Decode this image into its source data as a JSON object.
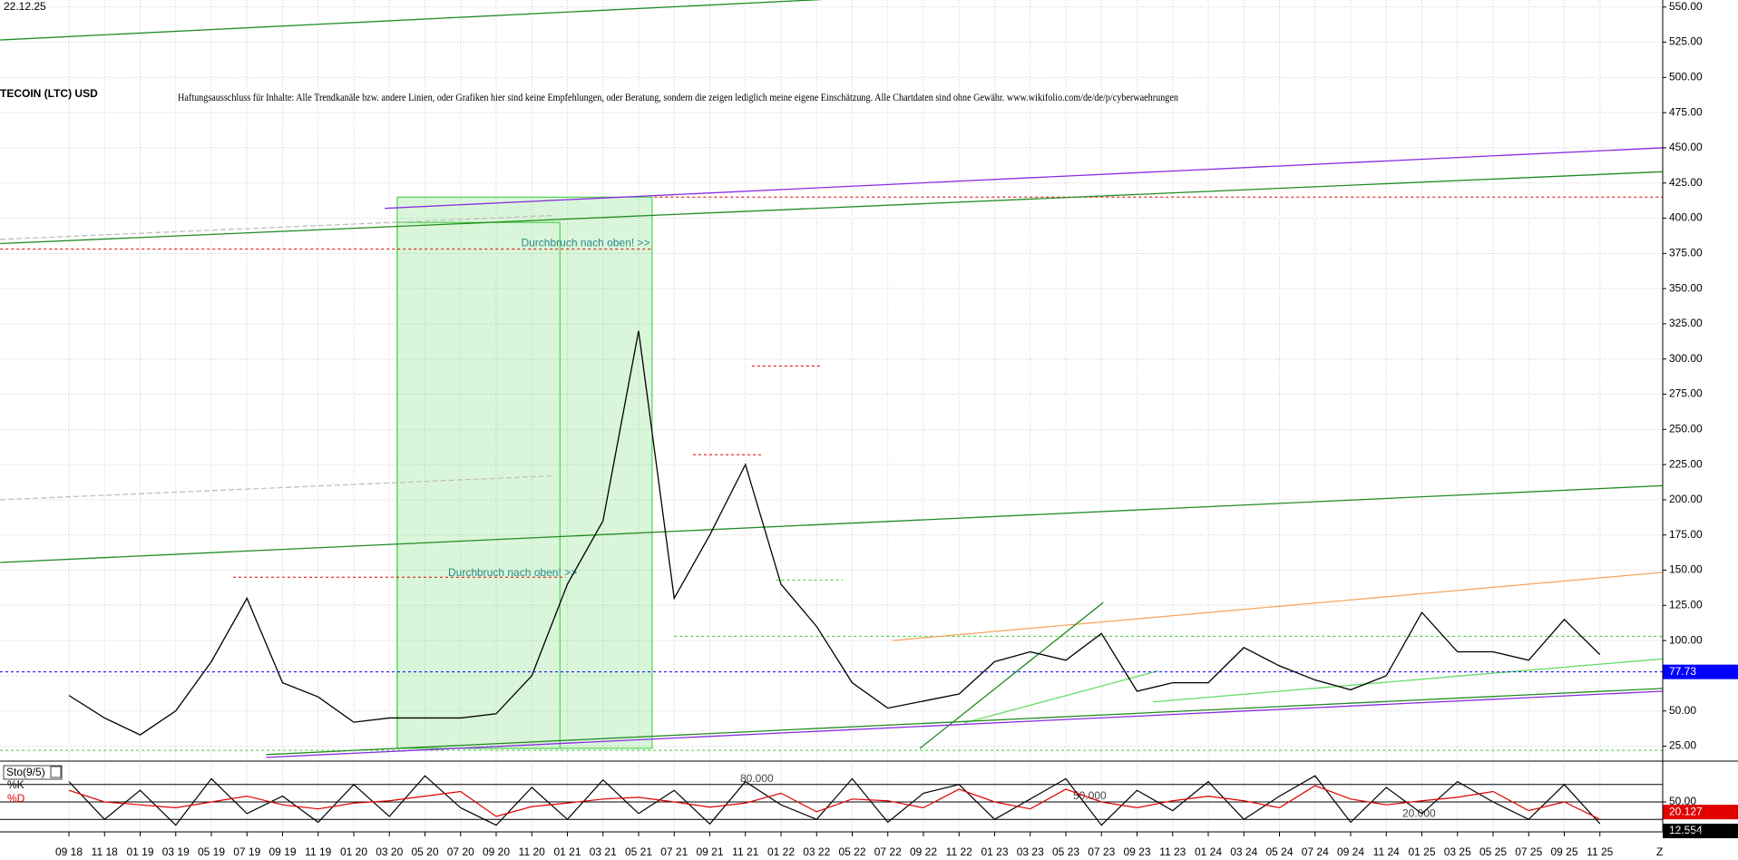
{
  "chart_data": {
    "type": "line",
    "date": "22.12.25",
    "title": "TECOIN (LTC) USD",
    "subtitle": "Haftungsausschluss für Inhalte: Alle Trendkanäle bzw. andere Linien, oder Grafiken hier sind keine Empfehlungen, oder Beratung, sondern die zeigen lediglich meine eigene Einschätzung. Alle Chartdaten sind ohne Gewähr.  www.wikifolio.com/de/de/p/cyberwaehrungen",
    "categories": [
      "09 18",
      "11 18",
      "01 19",
      "03 19",
      "05 19",
      "07 19",
      "09 19",
      "11 19",
      "01 20",
      "03 20",
      "05 20",
      "07 20",
      "09 20",
      "11 20",
      "01 21",
      "03 21",
      "05 21",
      "07 21",
      "09 21",
      "11 21",
      "01 22",
      "03 22",
      "05 22",
      "07 22",
      "09 22",
      "11 22",
      "01 23",
      "03 23",
      "05 23",
      "07 23",
      "09 23",
      "11 23",
      "01 24",
      "03 24",
      "05 24",
      "07 24",
      "09 24",
      "11 24",
      "01 25",
      "03 25",
      "05 25",
      "07 25",
      "09 25",
      "11 25"
    ],
    "values": [
      61,
      45,
      33,
      50,
      85,
      130,
      70,
      60,
      42,
      45,
      45,
      45,
      48,
      75,
      140,
      185,
      320,
      130,
      175,
      225,
      140,
      110,
      70,
      52,
      57,
      62,
      85,
      92,
      86,
      105,
      64,
      70,
      70,
      95,
      82,
      72,
      65,
      75,
      120,
      92,
      92,
      86,
      115,
      90
    ],
    "color": "#000000",
    "last_price": 77.73,
    "last_price_color": "#0000ff",
    "corner_label": "Z",
    "ylim": [
      15,
      555
    ],
    "yticks": [
      {
        "value": 25,
        "label": "25.00"
      },
      {
        "value": 50,
        "label": "50.00"
      },
      {
        "value": 75,
        "label": "75.00"
      },
      {
        "value": 100,
        "label": "100.00"
      },
      {
        "value": 125,
        "label": "125.00"
      },
      {
        "value": 150,
        "label": "150.00"
      },
      {
        "value": 175,
        "label": "175.00"
      },
      {
        "value": 200,
        "label": "200.00"
      },
      {
        "value": 225,
        "label": "225.00"
      },
      {
        "value": 250,
        "label": "250.00"
      },
      {
        "value": 275,
        "label": "275.00"
      },
      {
        "value": 300,
        "label": "300.00"
      },
      {
        "value": 325,
        "label": "325.00"
      },
      {
        "value": 350,
        "label": "350.00"
      },
      {
        "value": 375,
        "label": "375.00"
      },
      {
        "value": 400,
        "label": "400.00"
      },
      {
        "value": 425,
        "label": "425.00"
      },
      {
        "value": 450,
        "label": "450.00"
      },
      {
        "value": 475,
        "label": "475.00"
      },
      {
        "value": 500,
        "label": "500.00"
      },
      {
        "value": 525,
        "label": "525.00"
      },
      {
        "value": 550,
        "label": "550.00"
      }
    ],
    "grid": true,
    "hlines": [
      {
        "value": 415,
        "from": 16.44,
        "to": 44.77,
        "color": "#e00000"
      },
      {
        "value": 378,
        "from": -1.93,
        "to": 16.38,
        "color": "#e00000"
      },
      {
        "value": 145,
        "from": 4.61,
        "to": 13.95,
        "color": "#e00000"
      },
      {
        "value": 295,
        "from": 19.18,
        "to": 21.1,
        "color": "#e00000"
      },
      {
        "value": 232,
        "from": 17.53,
        "to": 19.49,
        "color": "#e00000"
      },
      {
        "value": 143,
        "from": 19.86,
        "to": 21.73,
        "color": "#33cc33"
      },
      {
        "value": 103,
        "from": 17.0,
        "to": 44.77,
        "color": "#33cc33"
      },
      {
        "value": 22,
        "from": -1.93,
        "to": 44.77,
        "color": "#33cc33"
      }
    ],
    "trendlines": [
      {
        "x": [
          -1.93,
          21.67
        ],
        "y": [
          526.6,
          556
        ],
        "color": "#228b22"
      },
      {
        "x": [
          8.87,
          44.77
        ],
        "y": [
          407,
          450
        ],
        "color": "#8a2be2"
      },
      {
        "x": [
          -1.93,
          44.77
        ],
        "y": [
          382,
          433
        ],
        "color": "#228b22"
      },
      {
        "x": [
          -1.93,
          44.77
        ],
        "y": [
          155.5,
          210
        ],
        "color": "#228b22"
      },
      {
        "x": [
          -1.93,
          13.64
        ],
        "y": [
          385,
          402
        ],
        "color": "#c0c0c0"
      },
      {
        "x": [
          -1.93,
          13.64
        ],
        "y": [
          200,
          217
        ],
        "color": "#c0c0c0"
      },
      {
        "x": [
          23.13,
          44.77
        ],
        "y": [
          100,
          148.5
        ],
        "color": "#f4a460"
      },
      {
        "x": [
          23.9,
          29.05
        ],
        "y": [
          23.4,
          127
        ],
        "color": "#228b22"
      },
      {
        "x": [
          25.15,
          30.6
        ],
        "y": [
          41.5,
          78.5
        ],
        "color": "#66dd66"
      },
      {
        "x": [
          30.45,
          44.77
        ],
        "y": [
          56.4,
          87
        ],
        "color": "#66dd66"
      },
      {
        "x": [
          5.54,
          44.77
        ],
        "y": [
          17,
          64
        ],
        "color": "#8a2be2"
      },
      {
        "x": [
          5.54,
          44.77
        ],
        "y": [
          19,
          66
        ],
        "color": "#228b22"
      }
    ],
    "boxes": [
      {
        "x": [
          9.22,
          16.38
        ],
        "y": [
          23.4,
          415
        ],
        "color": "#33cc33"
      },
      {
        "x": [
          9.22,
          13.79
        ],
        "y": [
          23.4,
          397
        ],
        "color": "#33cc33"
      }
    ],
    "annotations": [
      {
        "text": "Durchbruch nach oben! >>",
        "x": 12.7,
        "y": 382
      },
      {
        "text": "Durchbruch nach oben! >>",
        "x": 10.65,
        "y": 147.7
      }
    ],
    "stochastic": {
      "title": "Sto(9/5)",
      "ylim": [
        0,
        100
      ],
      "yticks": [
        {
          "value": 50,
          "label": "50.00"
        }
      ],
      "levels": [
        {
          "value": 80,
          "label": "80.000"
        },
        {
          "value": 50,
          "label": "50.000"
        },
        {
          "value": 20,
          "label": "20.000"
        }
      ],
      "series": [
        {
          "name": "%K",
          "color": "#000000",
          "values": [
            85,
            20,
            70,
            10,
            90,
            30,
            60,
            15,
            80,
            25,
            95,
            40,
            10,
            75,
            20,
            88,
            30,
            70,
            12,
            85,
            45,
            20,
            90,
            15,
            65,
            80,
            20,
            55,
            90,
            10,
            70,
            35,
            85,
            20,
            60,
            95,
            15,
            75,
            30,
            85,
            50,
            20,
            80,
            12.554
          ]
        },
        {
          "name": "%D",
          "color": "#e00000",
          "values": [
            70,
            50,
            45,
            40,
            50,
            60,
            45,
            38,
            48,
            52,
            60,
            68,
            25,
            42,
            48,
            55,
            58,
            50,
            41,
            48,
            65,
            33,
            55,
            52,
            40,
            72,
            50,
            38,
            72,
            50,
            40,
            52,
            60,
            52,
            40,
            78,
            55,
            45,
            52,
            58,
            68,
            35,
            50,
            20.127
          ]
        }
      ]
    }
  }
}
